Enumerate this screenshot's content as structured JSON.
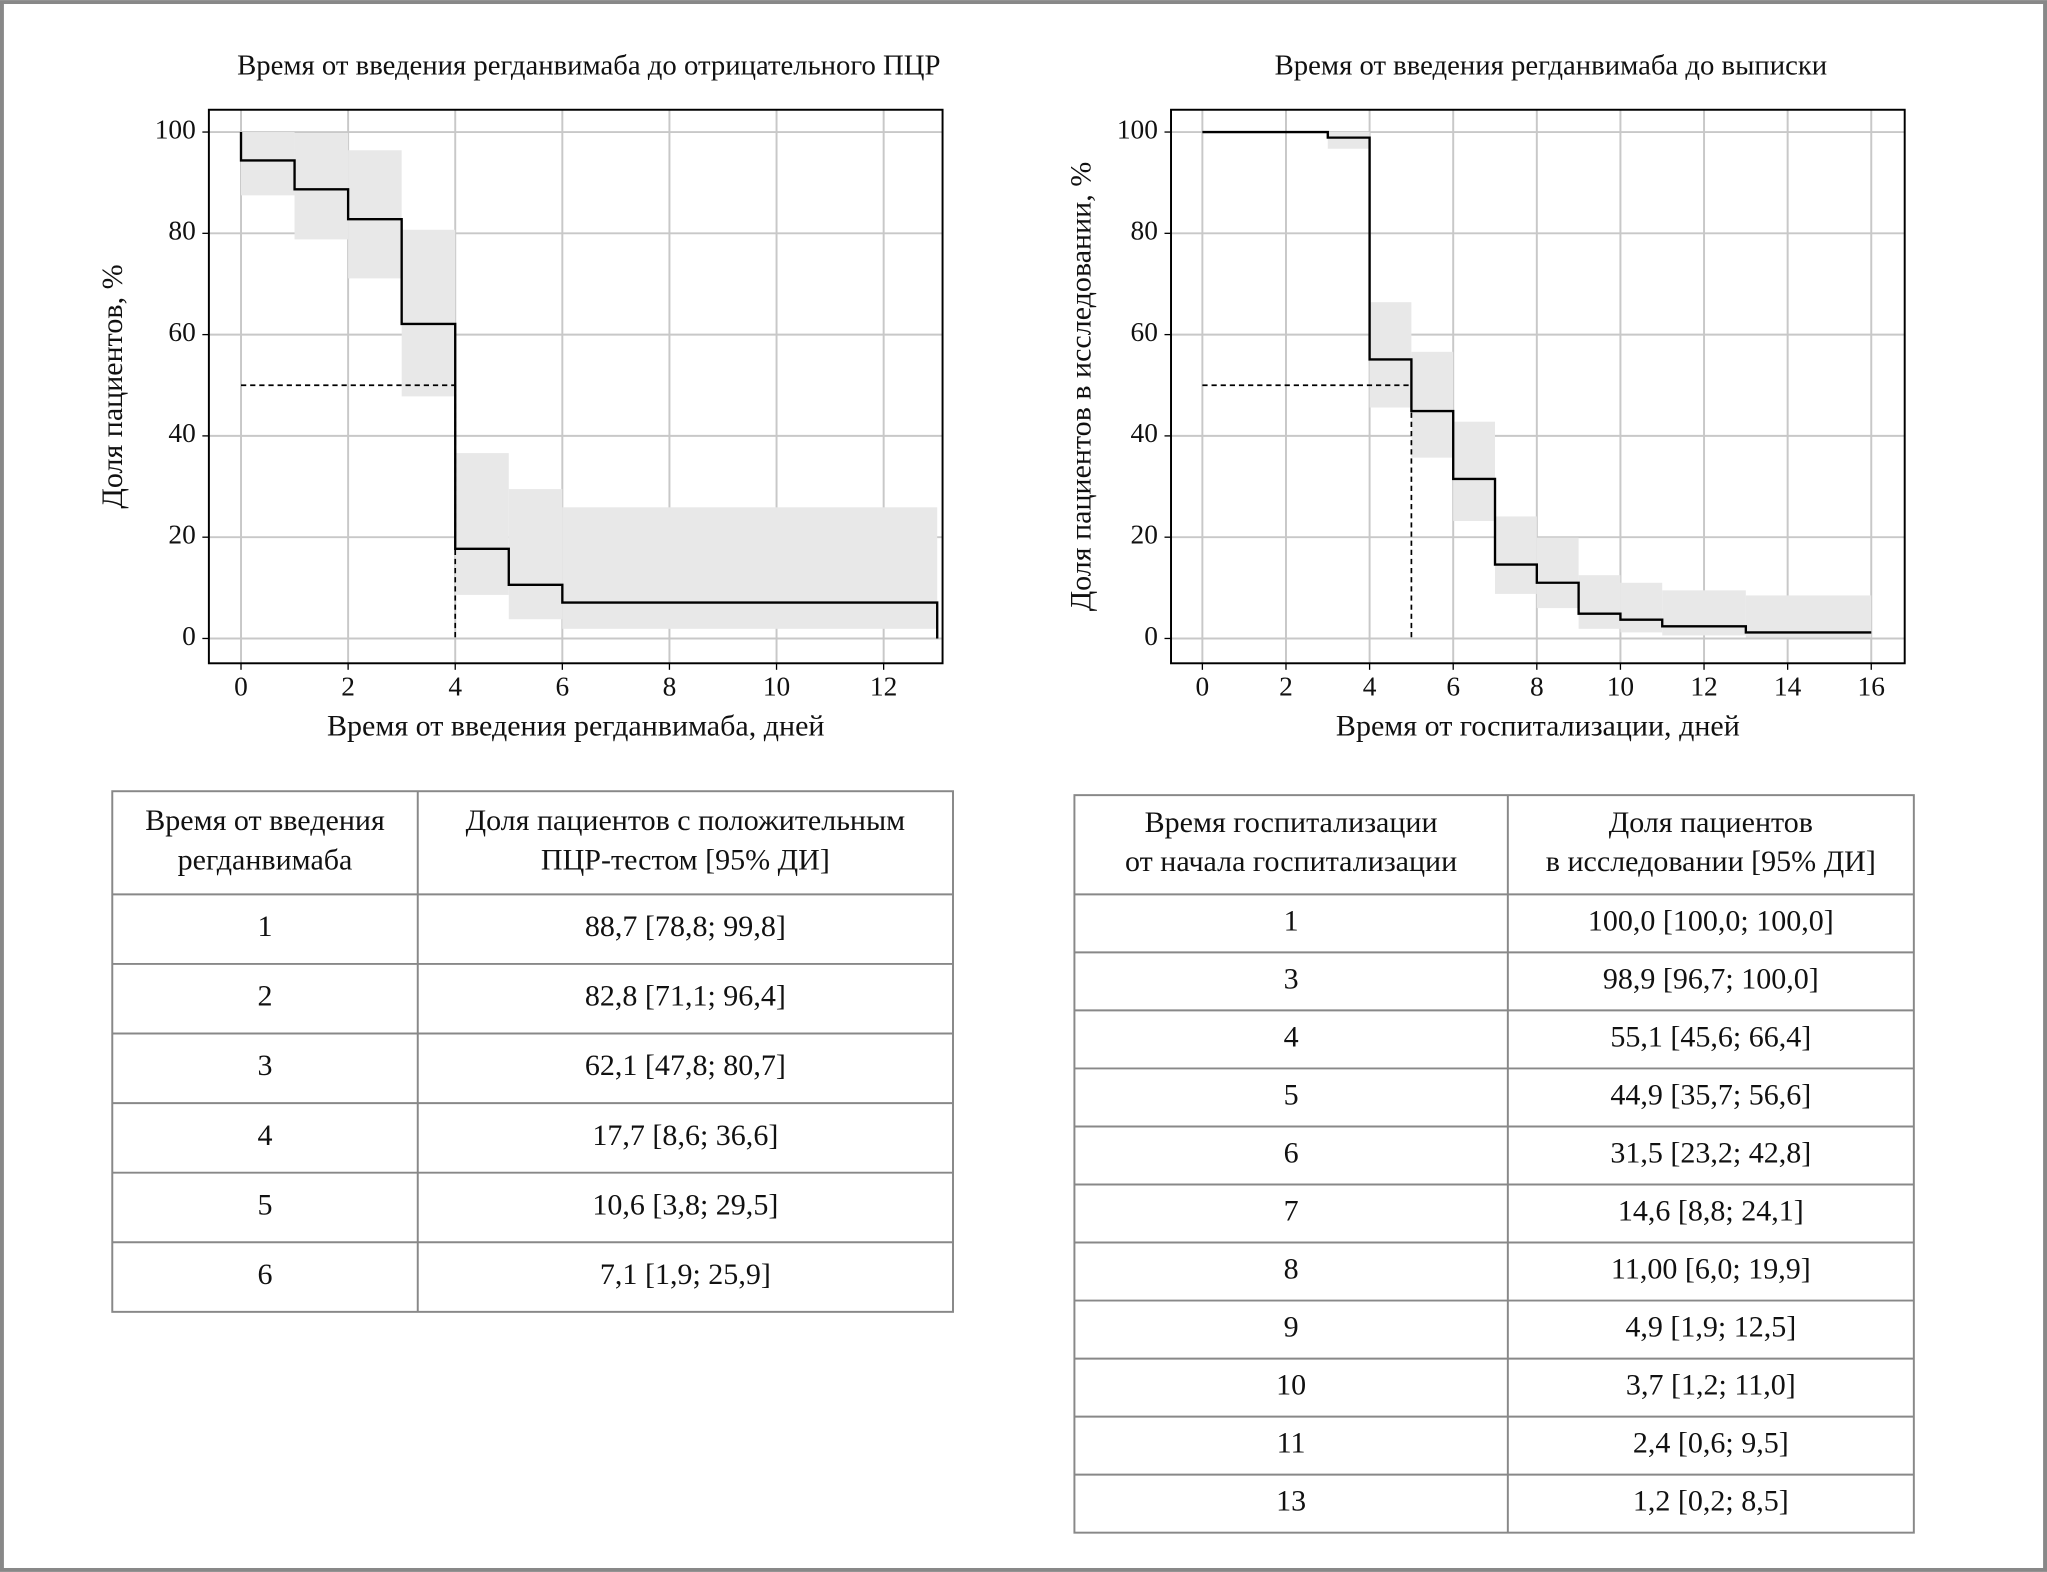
{
  "chart_data": [
    {
      "type": "step",
      "title": "Время от введения регданвимаба до отрицательного ПЦР",
      "x_label": "Время от введения регданвимаба, дней",
      "y_label": "Доля пациентов, %",
      "x": [
        0,
        0,
        1,
        2,
        3,
        4,
        5,
        6,
        13
      ],
      "values": [
        100,
        94.4,
        88.7,
        82.8,
        62.1,
        17.7,
        10.6,
        7.1,
        0
      ],
      "lower": [
        null,
        87.5,
        78.8,
        71.1,
        47.8,
        8.6,
        3.8,
        1.9,
        null
      ],
      "upper": [
        null,
        100,
        99.8,
        96.4,
        80.7,
        36.6,
        29.5,
        25.9,
        null
      ],
      "median_x": 4,
      "median_y": 50,
      "color": "#000000",
      "band_color": "#e8e8e8",
      "grid": true,
      "xlim": [
        -0.6,
        13.1
      ],
      "xticks": [
        0,
        2,
        4,
        6,
        8,
        10,
        12
      ],
      "ylim": [
        -4.9,
        104.4
      ],
      "yticks": [
        0,
        20,
        40,
        60,
        80,
        100
      ]
    },
    {
      "type": "step",
      "title": "Время от введения регданвимаба до выписки",
      "x_label": "Время от госпитализации, дней",
      "y_label": "Доля пациентов в исследовании, %",
      "x": [
        0,
        3,
        4,
        5,
        6,
        7,
        8,
        9,
        10,
        11,
        13
      ],
      "x_end": 16,
      "values": [
        100,
        98.9,
        55.1,
        44.9,
        31.5,
        14.6,
        11.0,
        4.9,
        3.7,
        2.4,
        1.2
      ],
      "lower": [
        null,
        96.7,
        45.6,
        35.7,
        23.2,
        8.8,
        6.0,
        1.9,
        1.2,
        0.6,
        0.2
      ],
      "upper": [
        null,
        100,
        66.4,
        56.6,
        42.8,
        24.1,
        19.9,
        12.5,
        11.0,
        9.5,
        8.5
      ],
      "median_x": 5,
      "median_y": 50,
      "color": "#000000",
      "band_color": "#e8e8e8",
      "grid": true,
      "xlim": [
        -0.75,
        16.8
      ],
      "xticks": [
        0,
        2,
        4,
        6,
        8,
        10,
        12,
        14,
        16
      ],
      "ylim": [
        -4.9,
        104.4
      ],
      "yticks": [
        0,
        20,
        40,
        60,
        80,
        100
      ]
    }
  ],
  "tables": [
    {
      "header": [
        [
          "Время от введения",
          "регданвимаба"
        ],
        [
          "Доля пациентов с положительным",
          "ПЦР-тестом [95% ДИ]"
        ]
      ],
      "rows": [
        [
          "1",
          "88,7 [78,8; 99,8]"
        ],
        [
          "2",
          "82,8 [71,1; 96,4]"
        ],
        [
          "3",
          "62,1 [47,8; 80,7]"
        ],
        [
          "4",
          "17,7 [8,6; 36,6]"
        ],
        [
          "5",
          "10,6 [3,8; 29,5]"
        ],
        [
          "6",
          "7,1 [1,9; 25,9]"
        ]
      ]
    },
    {
      "header": [
        [
          "Время госпитализации",
          "от начала госпитализации"
        ],
        [
          "Доля пациентов",
          "в исследовании [95% ДИ]"
        ]
      ],
      "rows": [
        [
          "1",
          "100,0 [100,0; 100,0]"
        ],
        [
          "3",
          "98,9 [96,7; 100,0]"
        ],
        [
          "4",
          "55,1 [45,6; 66,4]"
        ],
        [
          "5",
          "44,9 [35,7; 56,6]"
        ],
        [
          "6",
          "31,5 [23,2; 42,8]"
        ],
        [
          "7",
          "14,6 [8,8; 24,1]"
        ],
        [
          "8",
          "11,00 [6,0; 19,9]"
        ],
        [
          "9",
          "4,9 [1,9; 12,5]"
        ],
        [
          "10",
          "3,7 [1,2; 11,0]"
        ],
        [
          "11",
          "2,4 [0,6; 9,5]"
        ],
        [
          "13",
          "1,2 [0,2; 8,5]"
        ]
      ]
    }
  ]
}
